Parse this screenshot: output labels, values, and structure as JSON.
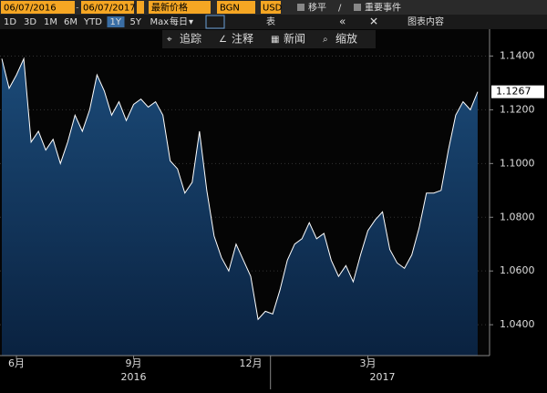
{
  "toolbar": {
    "start_date": "06/07/2016",
    "end_date": "06/07/2017",
    "price_field": "最新价格",
    "source": "BGN",
    "currency": "USD",
    "move": "移平",
    "events": "重要事件",
    "chart_content": "图表内容",
    "ranges": [
      "1D",
      "3D",
      "1M",
      "6M",
      "YTD",
      "1Y",
      "5Y",
      "Max"
    ],
    "active_range_index": 5,
    "frequency": "每日",
    "table": "表"
  },
  "chart_tools": [
    "追踪",
    "注释",
    "新闻",
    "缩放"
  ],
  "chart_data": {
    "type": "area",
    "color": "#ffffff",
    "categories": [
      null,
      null,
      "6月",
      null,
      null,
      null,
      null,
      null,
      null,
      null,
      null,
      null,
      null,
      null,
      null,
      null,
      null,
      null,
      "9月",
      null,
      null,
      null,
      null,
      null,
      null,
      null,
      null,
      null,
      null,
      null,
      null,
      null,
      null,
      null,
      "12月",
      null,
      null,
      null,
      null,
      null,
      null,
      null,
      null,
      null,
      null,
      null,
      null,
      null,
      null,
      null,
      "3月",
      null,
      null,
      null,
      null,
      null,
      null,
      null,
      null,
      null,
      null,
      null,
      null,
      null,
      null,
      null
    ],
    "year_categories": [
      null,
      null,
      null,
      null,
      null,
      null,
      null,
      null,
      null,
      null,
      null,
      null,
      null,
      null,
      null,
      null,
      null,
      null,
      "2016",
      null,
      null,
      null,
      null,
      null,
      null,
      null,
      null,
      null,
      null,
      null,
      null,
      null,
      null,
      null,
      null,
      null,
      null,
      null,
      null,
      null,
      null,
      null,
      null,
      null,
      null,
      null,
      null,
      null,
      null,
      null,
      null,
      null,
      "2017",
      null,
      null,
      null,
      null,
      null,
      null,
      null,
      null,
      null,
      null,
      null,
      null,
      null
    ],
    "values": [
      1.139,
      1.128,
      1.133,
      1.139,
      1.108,
      1.112,
      1.105,
      1.109,
      1.1,
      1.108,
      1.118,
      1.112,
      1.12,
      1.133,
      1.127,
      1.118,
      1.123,
      1.116,
      1.122,
      1.124,
      1.121,
      1.123,
      1.118,
      1.101,
      1.098,
      1.089,
      1.093,
      1.112,
      1.09,
      1.073,
      1.065,
      1.06,
      1.07,
      1.064,
      1.058,
      1.042,
      1.045,
      1.044,
      1.053,
      1.064,
      1.07,
      1.072,
      1.078,
      1.072,
      1.074,
      1.064,
      1.058,
      1.062,
      1.056,
      1.066,
      1.075,
      1.079,
      1.082,
      1.068,
      1.063,
      1.061,
      1.066,
      1.076,
      1.089,
      1.089,
      1.09,
      1.105,
      1.118,
      1.123,
      1.12,
      1.1267
    ],
    "ylim": [
      1.0285,
      1.15
    ],
    "yticks": [
      {
        "value": 1.04,
        "label": "1.0400"
      },
      {
        "value": 1.06,
        "label": "1.0600"
      },
      {
        "value": 1.08,
        "label": "1.0800"
      },
      {
        "value": 1.1,
        "label": "1.1000"
      },
      {
        "value": 1.12,
        "label": "1.1200"
      },
      {
        "value": 1.14,
        "label": "1.1400"
      }
    ],
    "grid": true
  }
}
